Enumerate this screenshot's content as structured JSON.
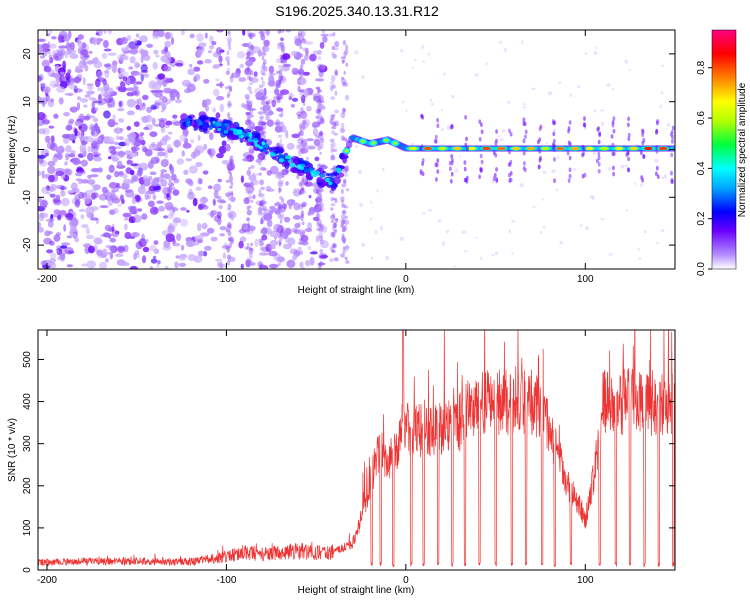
{
  "title": "S196.2025.340.13.31.R12",
  "chart_data": [
    {
      "type": "heatmap",
      "xlabel": "Height of straight line (km)",
      "ylabel": "Frequency (Hz)",
      "xlim": [
        -205,
        150
      ],
      "ylim": [
        -25,
        25
      ],
      "x_ticks": [
        -200,
        -100,
        0,
        100
      ],
      "y_ticks": [
        -20,
        -10,
        0,
        10,
        20
      ],
      "colorbar": {
        "label": "Normalized spectral amplitude",
        "range": [
          0,
          0.95
        ],
        "ticks": [
          0.0,
          0.2,
          0.4,
          0.6,
          0.8
        ]
      },
      "ridge": [
        {
          "x": -120,
          "y": 5.5
        },
        {
          "x": -110,
          "y": 5.3
        },
        {
          "x": -100,
          "y": 4.4
        },
        {
          "x": -90,
          "y": 3.0
        },
        {
          "x": -80,
          "y": 0.8
        },
        {
          "x": -70,
          "y": -1.5
        },
        {
          "x": -60,
          "y": -3.5
        },
        {
          "x": -50,
          "y": -5.5
        },
        {
          "x": -40,
          "y": -6.8
        },
        {
          "x": -30,
          "y": 2.5
        },
        {
          "x": -20,
          "y": 1.2
        },
        {
          "x": -10,
          "y": 2.0
        },
        {
          "x": 0,
          "y": 0.3
        },
        {
          "x": 20,
          "y": 0.0
        },
        {
          "x": 50,
          "y": 0.0
        },
        {
          "x": 100,
          "y": 0.0
        },
        {
          "x": 150,
          "y": 0.3
        }
      ]
    },
    {
      "type": "line",
      "xlabel": "Height of straight line (km)",
      "ylabel": "SNR (10 * v/v)",
      "xlim": [
        -205,
        150
      ],
      "ylim": [
        0,
        570
      ],
      "x_ticks": [
        -200,
        -100,
        0,
        100
      ],
      "y_ticks": [
        0,
        100,
        200,
        300,
        400,
        500
      ],
      "color": "#ee3333",
      "series": [
        {
          "values": [
            [
              -205,
              18
            ],
            [
              -180,
              20
            ],
            [
              -150,
              21
            ],
            [
              -120,
              20
            ],
            [
              -110,
              25
            ],
            [
              -100,
              32
            ],
            [
              -90,
              42
            ],
            [
              -80,
              38
            ],
            [
              -70,
              42
            ],
            [
              -60,
              45
            ],
            [
              -50,
              42
            ],
            [
              -40,
              45
            ],
            [
              -30,
              60
            ],
            [
              -25,
              120
            ],
            [
              -20,
              210
            ],
            [
              -15,
              280
            ],
            [
              -10,
              260
            ],
            [
              -5,
              290
            ],
            [
              -2,
              310
            ],
            [
              0,
              330
            ],
            [
              10,
              330
            ],
            [
              20,
              340
            ],
            [
              30,
              350
            ],
            [
              35,
              380
            ],
            [
              40,
              390
            ],
            [
              50,
              400
            ],
            [
              60,
              395
            ],
            [
              70,
              400
            ],
            [
              75,
              380
            ],
            [
              80,
              330
            ],
            [
              85,
              270
            ],
            [
              90,
              200
            ],
            [
              95,
              170
            ],
            [
              100,
              120
            ],
            [
              105,
              220
            ],
            [
              110,
              400
            ],
            [
              120,
              400
            ],
            [
              130,
              400
            ],
            [
              140,
              395
            ],
            [
              150,
              400
            ]
          ]
        }
      ]
    }
  ]
}
